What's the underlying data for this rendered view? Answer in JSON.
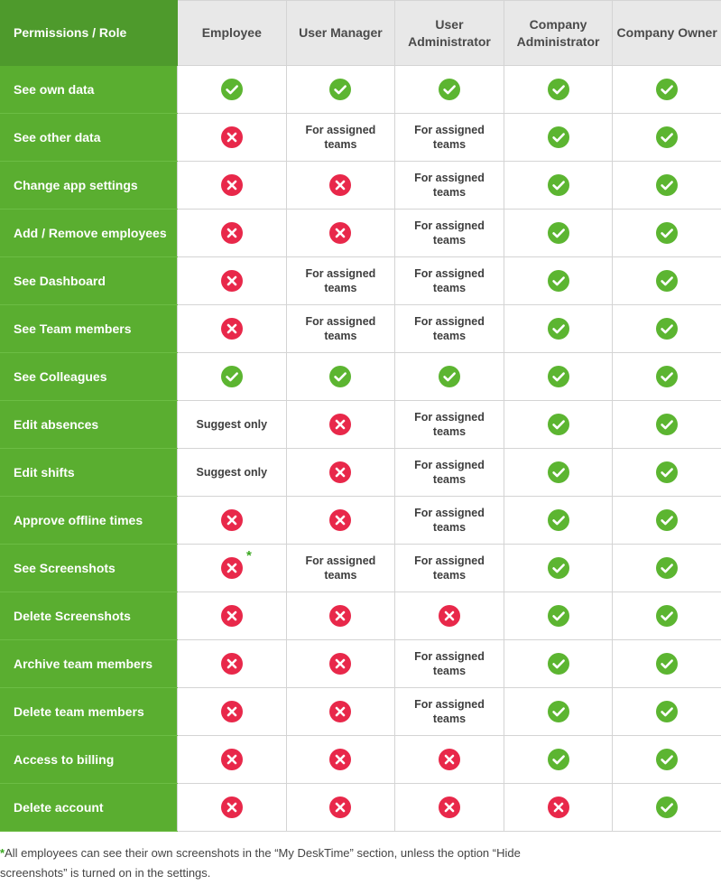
{
  "colors": {
    "yes": "#5cb531",
    "no": "#e8284a",
    "header_bg": "#e8e8e8",
    "row_label_bg": "#5aae30"
  },
  "header": {
    "corner": "Permissions / Role",
    "roles": [
      "Employee",
      "User Manager",
      "User Administrator",
      "Company Administrator",
      "Company Owner"
    ]
  },
  "rows": [
    {
      "label": "See own data",
      "cells": [
        "yes",
        "yes",
        "yes",
        "yes",
        "yes"
      ]
    },
    {
      "label": "See other data",
      "cells": [
        "no",
        "For assigned teams",
        "For assigned teams",
        "yes",
        "yes"
      ]
    },
    {
      "label": "Change app settings",
      "cells": [
        "no",
        "no",
        "For assigned teams",
        "yes",
        "yes"
      ]
    },
    {
      "label": "Add / Remove employees",
      "cells": [
        "no",
        "no",
        "For assigned teams",
        "yes",
        "yes"
      ]
    },
    {
      "label": "See Dashboard",
      "cells": [
        "no",
        "For assigned teams",
        "For assigned teams",
        "yes",
        "yes"
      ]
    },
    {
      "label": "See Team members",
      "cells": [
        "no",
        "For assigned teams",
        "For assigned teams",
        "yes",
        "yes"
      ]
    },
    {
      "label": "See Colleagues",
      "cells": [
        "yes",
        "yes",
        "yes",
        "yes",
        "yes"
      ]
    },
    {
      "label": "Edit absences",
      "cells": [
        "Suggest only",
        "no",
        "For assigned teams",
        "yes",
        "yes"
      ]
    },
    {
      "label": "Edit shifts",
      "cells": [
        "Suggest only",
        "no",
        "For assigned teams",
        "yes",
        "yes"
      ]
    },
    {
      "label": "Approve offline times",
      "cells": [
        "no",
        "no",
        "For assigned teams",
        "yes",
        "yes"
      ]
    },
    {
      "label": "See Screenshots",
      "cells": [
        "no*",
        "For assigned teams",
        "For assigned teams",
        "yes",
        "yes"
      ]
    },
    {
      "label": "Delete Screenshots",
      "cells": [
        "no",
        "no",
        "no",
        "yes",
        "yes"
      ]
    },
    {
      "label": "Archive team members",
      "cells": [
        "no",
        "no",
        "For assigned teams",
        "yes",
        "yes"
      ]
    },
    {
      "label": "Delete team members",
      "cells": [
        "no",
        "no",
        "For assigned teams",
        "yes",
        "yes"
      ]
    },
    {
      "label": "Access to billing",
      "cells": [
        "no",
        "no",
        "no",
        "yes",
        "yes"
      ]
    },
    {
      "label": "Delete account",
      "cells": [
        "no",
        "no",
        "no",
        "no",
        "yes"
      ]
    }
  ],
  "icons": {
    "yes": "check-circle-icon",
    "no": "cross-circle-icon"
  },
  "footnote": {
    "star": "*",
    "text": "All employees can see their own screenshots in the “My DeskTime” section, unless the option “Hide screenshots” is turned on in the settings."
  }
}
